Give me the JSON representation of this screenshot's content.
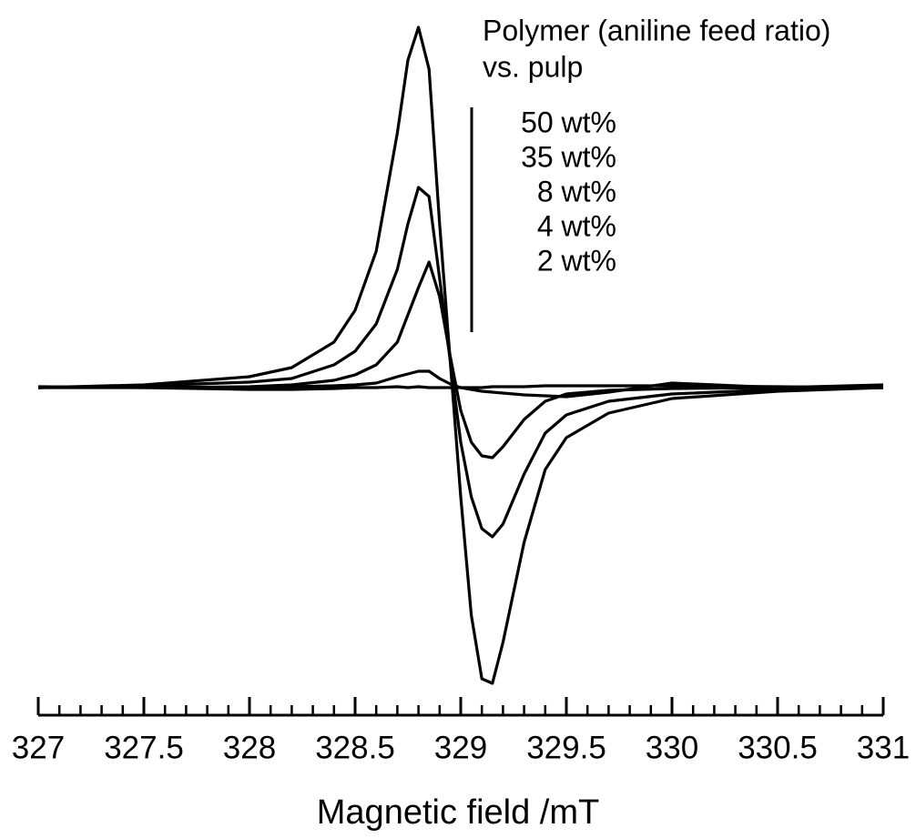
{
  "chart_data": {
    "type": "line",
    "legend_title": [
      "Polymer (aniline feed ratio)",
      "vs. pulp"
    ],
    "xlabel": "Magnetic field /mT",
    "x": [
      327,
      327.5,
      328,
      328.2,
      328.4,
      328.5,
      328.6,
      328.7,
      328.75,
      328.8,
      328.85,
      328.9,
      328.95,
      329,
      329.05,
      329.1,
      329.15,
      329.2,
      329.3,
      329.4,
      329.5,
      329.7,
      330,
      330.5,
      331
    ],
    "series": [
      {
        "name": "50 wt%",
        "color": "#000000",
        "values": [
          0,
          0.03,
          0.12,
          0.22,
          0.5,
          0.85,
          1.5,
          2.8,
          3.6,
          3.96,
          3.5,
          1.8,
          0.3,
          -1.2,
          -2.5,
          -3.2,
          -3.25,
          -2.8,
          -1.7,
          -0.9,
          -0.55,
          -0.28,
          -0.12,
          -0.04,
          0
        ]
      },
      {
        "name": "35 wt%",
        "color": "#000000",
        "values": [
          0,
          0.02,
          0.06,
          0.1,
          0.25,
          0.4,
          0.7,
          1.3,
          1.8,
          2.2,
          2.1,
          1.2,
          0.3,
          -0.6,
          -1.2,
          -1.55,
          -1.64,
          -1.5,
          -0.95,
          -0.5,
          -0.3,
          -0.15,
          -0.07,
          -0.02,
          0
        ]
      },
      {
        "name": "8 wt%",
        "color": "#000000",
        "values": [
          0,
          0,
          0.01,
          0.03,
          0.08,
          0.14,
          0.25,
          0.5,
          0.8,
          1.1,
          1.38,
          1.0,
          0.35,
          -0.25,
          -0.6,
          -0.75,
          -0.77,
          -0.65,
          -0.35,
          -0.15,
          -0.07,
          -0.03,
          -0.01,
          0,
          0
        ]
      },
      {
        "name": "4 wt%",
        "color": "#000000",
        "values": [
          0,
          0.01,
          0,
          0.01,
          0.02,
          0.03,
          0.05,
          0.12,
          0.15,
          0.18,
          0.18,
          0.1,
          0.04,
          0,
          -0.02,
          -0.04,
          -0.05,
          -0.06,
          -0.08,
          -0.09,
          -0.1,
          -0.05,
          0.05,
          0,
          0.03
        ]
      },
      {
        "name": "2 wt%",
        "color": "#000000",
        "values": [
          0.01,
          0,
          -0.02,
          -0.02,
          -0.01,
          0,
          0,
          0.01,
          0,
          0.01,
          0,
          0,
          0,
          0,
          0,
          0,
          0.01,
          0.01,
          0.01,
          0.02,
          0.02,
          0.02,
          0.02,
          0.01,
          0
        ]
      }
    ],
    "xlim": [
      327,
      331
    ],
    "xticks": [
      327,
      327.5,
      328,
      328.5,
      329,
      329.5,
      330,
      330.5,
      331
    ],
    "xminorticks": [
      327.1,
      327.2,
      327.3,
      327.4,
      327.6,
      327.7,
      327.8,
      327.9,
      328.1,
      328.2,
      328.3,
      328.4,
      328.6,
      328.7,
      328.8,
      328.9,
      329.1,
      329.2,
      329.3,
      329.4,
      329.6,
      329.7,
      329.8,
      329.9,
      330.1,
      330.2,
      330.3,
      330.4,
      330.6,
      330.7,
      330.8,
      330.9
    ],
    "ylim": [
      -3.44,
      4.16
    ]
  }
}
